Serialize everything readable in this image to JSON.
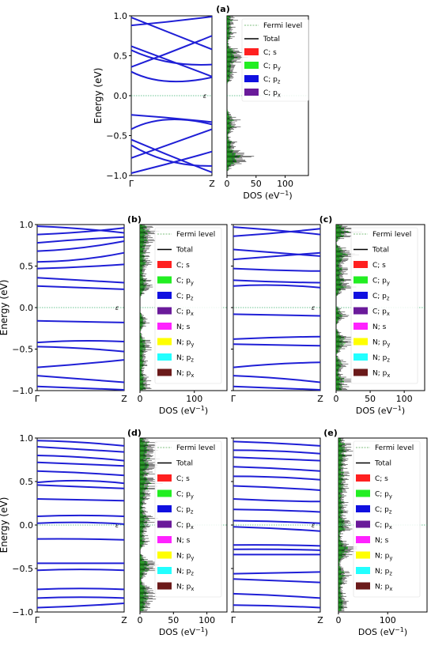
{
  "chart_data": [
    {
      "panel": "a",
      "type": "line",
      "label": "(a)",
      "band_ylabel": "Energy (eV)",
      "band_xticks": [
        "Γ",
        "Z"
      ],
      "band_yticks": [
        "1.0",
        "0.5",
        "0.0",
        "−0.5",
        "−1.0"
      ],
      "ylim": [
        -1.0,
        1.0
      ],
      "fermi_label": "ε_F",
      "band_color": "#1f1fd6",
      "bands": [
        [
          [
            0,
            0.98
          ],
          [
            0.5,
            0.78
          ],
          [
            1,
            0.58
          ]
        ],
        [
          [
            0,
            0.88
          ],
          [
            0.5,
            0.93
          ],
          [
            1,
            0.99
          ]
        ],
        [
          [
            0,
            0.62
          ],
          [
            0.5,
            0.43
          ],
          [
            1,
            0.24
          ]
        ],
        [
          [
            0,
            0.36
          ],
          [
            0.5,
            0.55
          ],
          [
            1,
            0.75
          ]
        ],
        [
          [
            0,
            0.3
          ],
          [
            0.4,
            0.18
          ],
          [
            1,
            0.23
          ]
        ],
        [
          [
            0,
            0.57
          ],
          [
            0.45,
            0.42
          ],
          [
            1,
            0.39
          ]
        ],
        [
          [
            0,
            -0.24
          ],
          [
            0.5,
            -0.28
          ],
          [
            1,
            -0.33
          ]
        ],
        [
          [
            0,
            -0.42
          ],
          [
            0.4,
            -0.3
          ],
          [
            1,
            -0.36
          ]
        ],
        [
          [
            0,
            -0.55
          ],
          [
            0.5,
            -0.76
          ],
          [
            1,
            -0.96
          ]
        ],
        [
          [
            0,
            -0.78
          ],
          [
            0.5,
            -0.6
          ],
          [
            1,
            -0.42
          ]
        ],
        [
          [
            0,
            -0.97
          ],
          [
            0.5,
            -0.84
          ],
          [
            1,
            -0.7
          ]
        ],
        [
          [
            0,
            -0.62
          ],
          [
            0.45,
            -0.82
          ],
          [
            1,
            -0.88
          ]
        ]
      ],
      "dos_xlabel": "DOS (eV⁻¹)",
      "dos_xticks": [
        0,
        50,
        100
      ],
      "dos_xlim": [
        0,
        140
      ],
      "legend": [
        "Fermi level",
        "Total",
        "C; s",
        "C; p_y",
        "C; p_z",
        "C; p_x"
      ],
      "legend_colors": [
        "#7fbf7f",
        "#000000",
        "#ff2020",
        "#22ee22",
        "#1010e0",
        "#6a1a9a"
      ]
    },
    {
      "panel": "b",
      "type": "line",
      "label": "(b)",
      "band_ylabel": "Energy (eV)",
      "band_xticks": [
        "Γ",
        "Z"
      ],
      "band_yticks": [
        "1.0",
        "0.5",
        "0.0",
        "−0.5",
        "−1.0"
      ],
      "ylim": [
        -1.0,
        1.0
      ],
      "fermi_label": "ε_F",
      "band_color": "#1f1fd6",
      "bands": [
        [
          [
            0,
            0.98
          ],
          [
            0.5,
            0.95
          ],
          [
            1,
            0.9
          ]
        ],
        [
          [
            0,
            0.88
          ],
          [
            0.5,
            0.91
          ],
          [
            1,
            0.96
          ]
        ],
        [
          [
            0,
            0.78
          ],
          [
            0.5,
            0.82
          ],
          [
            1,
            0.85
          ]
        ],
        [
          [
            0,
            0.68
          ],
          [
            0.5,
            0.72
          ],
          [
            1,
            0.8
          ]
        ],
        [
          [
            0,
            0.55
          ],
          [
            0.5,
            0.58
          ],
          [
            1,
            0.66
          ]
        ],
        [
          [
            0,
            0.47
          ],
          [
            0.5,
            0.49
          ],
          [
            1,
            0.52
          ]
        ],
        [
          [
            0,
            0.36
          ],
          [
            0.5,
            0.33
          ],
          [
            1,
            0.3
          ]
        ],
        [
          [
            0,
            0.26
          ],
          [
            0.5,
            0.24
          ],
          [
            1,
            0.22
          ]
        ],
        [
          [
            0,
            -0.16
          ],
          [
            0.5,
            -0.17
          ],
          [
            1,
            -0.18
          ]
        ],
        [
          [
            0,
            -0.42
          ],
          [
            0.5,
            -0.4
          ],
          [
            1,
            -0.41
          ]
        ],
        [
          [
            0,
            -0.47
          ],
          [
            0.5,
            -0.49
          ],
          [
            1,
            -0.53
          ]
        ],
        [
          [
            0,
            -0.72
          ],
          [
            0.5,
            -0.68
          ],
          [
            1,
            -0.63
          ]
        ],
        [
          [
            0,
            -0.82
          ],
          [
            0.5,
            -0.86
          ],
          [
            1,
            -0.9
          ]
        ],
        [
          [
            0,
            -0.95
          ],
          [
            0.5,
            -0.97
          ],
          [
            1,
            -0.99
          ]
        ]
      ],
      "dos_xlabel": "DOS (eV⁻¹)",
      "dos_xticks": [
        0,
        100
      ],
      "dos_xlim": [
        0,
        160
      ],
      "legend": [
        "Fermi level",
        "Total",
        "C; s",
        "C; p_y",
        "C; p_z",
        "C; p_x",
        "N; s",
        "N; p_y",
        "N; p_z",
        "N; p_x"
      ],
      "legend_colors": [
        "#7fbf7f",
        "#000000",
        "#ff2020",
        "#22ee22",
        "#1010e0",
        "#6a1a9a",
        "#ff22ff",
        "#ffff00",
        "#22ffff",
        "#6b1a1a"
      ]
    },
    {
      "panel": "c",
      "type": "line",
      "label": "(c)",
      "band_xticks": [
        "Γ",
        "Z"
      ],
      "ylim": [
        -1.0,
        1.0
      ],
      "fermi_label": "ε_F",
      "band_color": "#1f1fd6",
      "bands": [
        [
          [
            0,
            0.97
          ],
          [
            0.5,
            0.93
          ],
          [
            1,
            0.88
          ]
        ],
        [
          [
            0,
            0.86
          ],
          [
            0.5,
            0.9
          ],
          [
            1,
            0.95
          ]
        ],
        [
          [
            0,
            0.7
          ],
          [
            0.5,
            0.66
          ],
          [
            1,
            0.62
          ]
        ],
        [
          [
            0,
            0.58
          ],
          [
            0.5,
            0.62
          ],
          [
            1,
            0.66
          ]
        ],
        [
          [
            0,
            0.47
          ],
          [
            0.5,
            0.45
          ],
          [
            1,
            0.44
          ]
        ],
        [
          [
            0,
            0.33
          ],
          [
            0.5,
            0.31
          ],
          [
            1,
            0.3
          ]
        ],
        [
          [
            0,
            0.26
          ],
          [
            0.5,
            0.27
          ],
          [
            1,
            0.24
          ]
        ],
        [
          [
            0,
            -0.08
          ],
          [
            0.5,
            -0.09
          ],
          [
            1,
            -0.1
          ]
        ],
        [
          [
            0,
            -0.38
          ],
          [
            0.5,
            -0.36
          ],
          [
            1,
            -0.35
          ]
        ],
        [
          [
            0,
            -0.44
          ],
          [
            0.5,
            -0.45
          ],
          [
            1,
            -0.46
          ]
        ],
        [
          [
            0,
            -0.72
          ],
          [
            0.5,
            -0.68
          ],
          [
            1,
            -0.66
          ]
        ],
        [
          [
            0,
            -0.82
          ],
          [
            0.5,
            -0.85
          ],
          [
            1,
            -0.9
          ]
        ],
        [
          [
            0,
            -0.95
          ],
          [
            0.5,
            -0.97
          ],
          [
            1,
            -0.99
          ]
        ]
      ],
      "dos_xlabel": "DOS (eV⁻¹)",
      "dos_xticks": [
        0,
        50,
        100
      ],
      "dos_xlim": [
        0,
        130
      ],
      "legend": [
        "Fermi level",
        "Total",
        "C; s",
        "C; p_y",
        "C; p_z",
        "C; p_x",
        "N; s",
        "N; p_y",
        "N; p_z",
        "N; p_x"
      ],
      "legend_colors": [
        "#7fbf7f",
        "#000000",
        "#ff2020",
        "#22ee22",
        "#1010e0",
        "#6a1a9a",
        "#ff22ff",
        "#ffff00",
        "#22ffff",
        "#6b1a1a"
      ]
    },
    {
      "panel": "d",
      "type": "line",
      "label": "(d)",
      "band_ylabel": "Energy (eV)",
      "band_xticks": [
        "Γ",
        "Z"
      ],
      "band_yticks": [
        "1.0",
        "0.5",
        "0.0",
        "−0.5",
        "−1.0"
      ],
      "ylim": [
        -1.0,
        1.0
      ],
      "fermi_label": "ε_F",
      "band_color": "#1f1fd6",
      "bands": [
        [
          [
            0,
            0.97
          ],
          [
            0.5,
            0.95
          ],
          [
            1,
            0.91
          ]
        ],
        [
          [
            0,
            0.9
          ],
          [
            0.5,
            0.87
          ],
          [
            1,
            0.84
          ]
        ],
        [
          [
            0,
            0.8
          ],
          [
            0.5,
            0.78
          ],
          [
            1,
            0.74
          ]
        ],
        [
          [
            0,
            0.72
          ],
          [
            0.5,
            0.7
          ],
          [
            1,
            0.68
          ]
        ],
        [
          [
            0,
            0.62
          ],
          [
            0.5,
            0.6
          ],
          [
            1,
            0.57
          ]
        ],
        [
          [
            0,
            0.49
          ],
          [
            0.5,
            0.51
          ],
          [
            1,
            0.48
          ]
        ],
        [
          [
            0,
            0.46
          ],
          [
            0.5,
            0.44
          ],
          [
            1,
            0.42
          ]
        ],
        [
          [
            0,
            0.3
          ],
          [
            0.5,
            0.29
          ],
          [
            1,
            0.28
          ]
        ],
        [
          [
            0,
            0.1
          ],
          [
            0.5,
            0.11
          ],
          [
            1,
            0.1
          ]
        ],
        [
          [
            0,
            0.02
          ],
          [
            0.5,
            0.03
          ],
          [
            1,
            0.01
          ]
        ],
        [
          [
            0,
            -0.16
          ],
          [
            0.5,
            -0.16
          ],
          [
            1,
            -0.17
          ]
        ],
        [
          [
            0,
            -0.44
          ],
          [
            0.5,
            -0.44
          ],
          [
            1,
            -0.44
          ]
        ],
        [
          [
            0,
            -0.52
          ],
          [
            0.5,
            -0.51
          ],
          [
            1,
            -0.52
          ]
        ],
        [
          [
            0,
            -0.74
          ],
          [
            0.5,
            -0.73
          ],
          [
            1,
            -0.74
          ]
        ],
        [
          [
            0,
            -0.84
          ],
          [
            0.5,
            -0.83
          ],
          [
            1,
            -0.84
          ]
        ],
        [
          [
            0,
            -0.95
          ],
          [
            0.5,
            -0.93
          ],
          [
            1,
            -0.9
          ]
        ]
      ],
      "dos_xlabel": "DOS (eV⁻¹)",
      "dos_xticks": [
        0,
        50,
        100
      ],
      "dos_xlim": [
        0,
        130
      ],
      "legend": [
        "Fermi level",
        "Total",
        "C; s",
        "C; p_y",
        "C; p_z",
        "C; p_x",
        "N; s",
        "N; p_y",
        "N; p_z",
        "N; p_x"
      ],
      "legend_colors": [
        "#7fbf7f",
        "#000000",
        "#ff2020",
        "#22ee22",
        "#1010e0",
        "#6a1a9a",
        "#ff22ff",
        "#ffff00",
        "#22ffff",
        "#6b1a1a"
      ]
    },
    {
      "panel": "e",
      "type": "line",
      "label": "(e)",
      "band_xticks": [
        "Γ",
        "Z"
      ],
      "ylim": [
        -1.0,
        1.0
      ],
      "fermi_label": "ε_F",
      "band_color": "#1f1fd6",
      "bands": [
        [
          [
            0,
            0.96
          ],
          [
            0.5,
            0.94
          ],
          [
            1,
            0.91
          ]
        ],
        [
          [
            0,
            0.86
          ],
          [
            0.5,
            0.85
          ],
          [
            1,
            0.82
          ]
        ],
        [
          [
            0,
            0.78
          ],
          [
            0.5,
            0.76
          ],
          [
            1,
            0.74
          ]
        ],
        [
          [
            0,
            0.67
          ],
          [
            0.5,
            0.65
          ],
          [
            1,
            0.62
          ]
        ],
        [
          [
            0,
            0.56
          ],
          [
            0.5,
            0.55
          ],
          [
            1,
            0.52
          ]
        ],
        [
          [
            0,
            0.45
          ],
          [
            0.5,
            0.43
          ],
          [
            1,
            0.4
          ]
        ],
        [
          [
            0,
            0.3
          ],
          [
            0.5,
            0.28
          ],
          [
            1,
            0.27
          ]
        ],
        [
          [
            0,
            0.18
          ],
          [
            0.5,
            0.17
          ],
          [
            1,
            0.15
          ]
        ],
        [
          [
            0,
            0.05
          ],
          [
            0.5,
            0.04
          ],
          [
            1,
            0.02
          ]
        ],
        [
          [
            0,
            -0.02
          ],
          [
            0.5,
            -0.04
          ],
          [
            1,
            -0.07
          ]
        ],
        [
          [
            0,
            -0.23
          ],
          [
            0.5,
            -0.23
          ],
          [
            1,
            -0.24
          ]
        ],
        [
          [
            0,
            -0.28
          ],
          [
            0.5,
            -0.28
          ],
          [
            1,
            -0.29
          ]
        ],
        [
          [
            0,
            -0.34
          ],
          [
            0.5,
            -0.34
          ],
          [
            1,
            -0.34
          ]
        ],
        [
          [
            0,
            -0.56
          ],
          [
            0.5,
            -0.55
          ],
          [
            1,
            -0.54
          ]
        ],
        [
          [
            0,
            -0.62
          ],
          [
            0.5,
            -0.64
          ],
          [
            1,
            -0.66
          ]
        ],
        [
          [
            0,
            -0.79
          ],
          [
            0.5,
            -0.81
          ],
          [
            1,
            -0.84
          ]
        ],
        [
          [
            0,
            -0.92
          ],
          [
            0.5,
            -0.93
          ],
          [
            1,
            -0.95
          ]
        ]
      ],
      "dos_xlabel": "DOS (eV⁻¹)",
      "dos_xticks": [
        0,
        100
      ],
      "dos_xlim": [
        0,
        180
      ],
      "legend": [
        "Fermi level",
        "Total",
        "C; s",
        "C; p_y",
        "C; p_z",
        "C; p_x",
        "N; s",
        "N; p_y",
        "N; p_z",
        "N; p_x"
      ],
      "legend_colors": [
        "#7fbf7f",
        "#000000",
        "#ff2020",
        "#22ee22",
        "#1010e0",
        "#6a1a9a",
        "#ff22ff",
        "#ffff00",
        "#22ffff",
        "#6b1a1a"
      ]
    }
  ]
}
